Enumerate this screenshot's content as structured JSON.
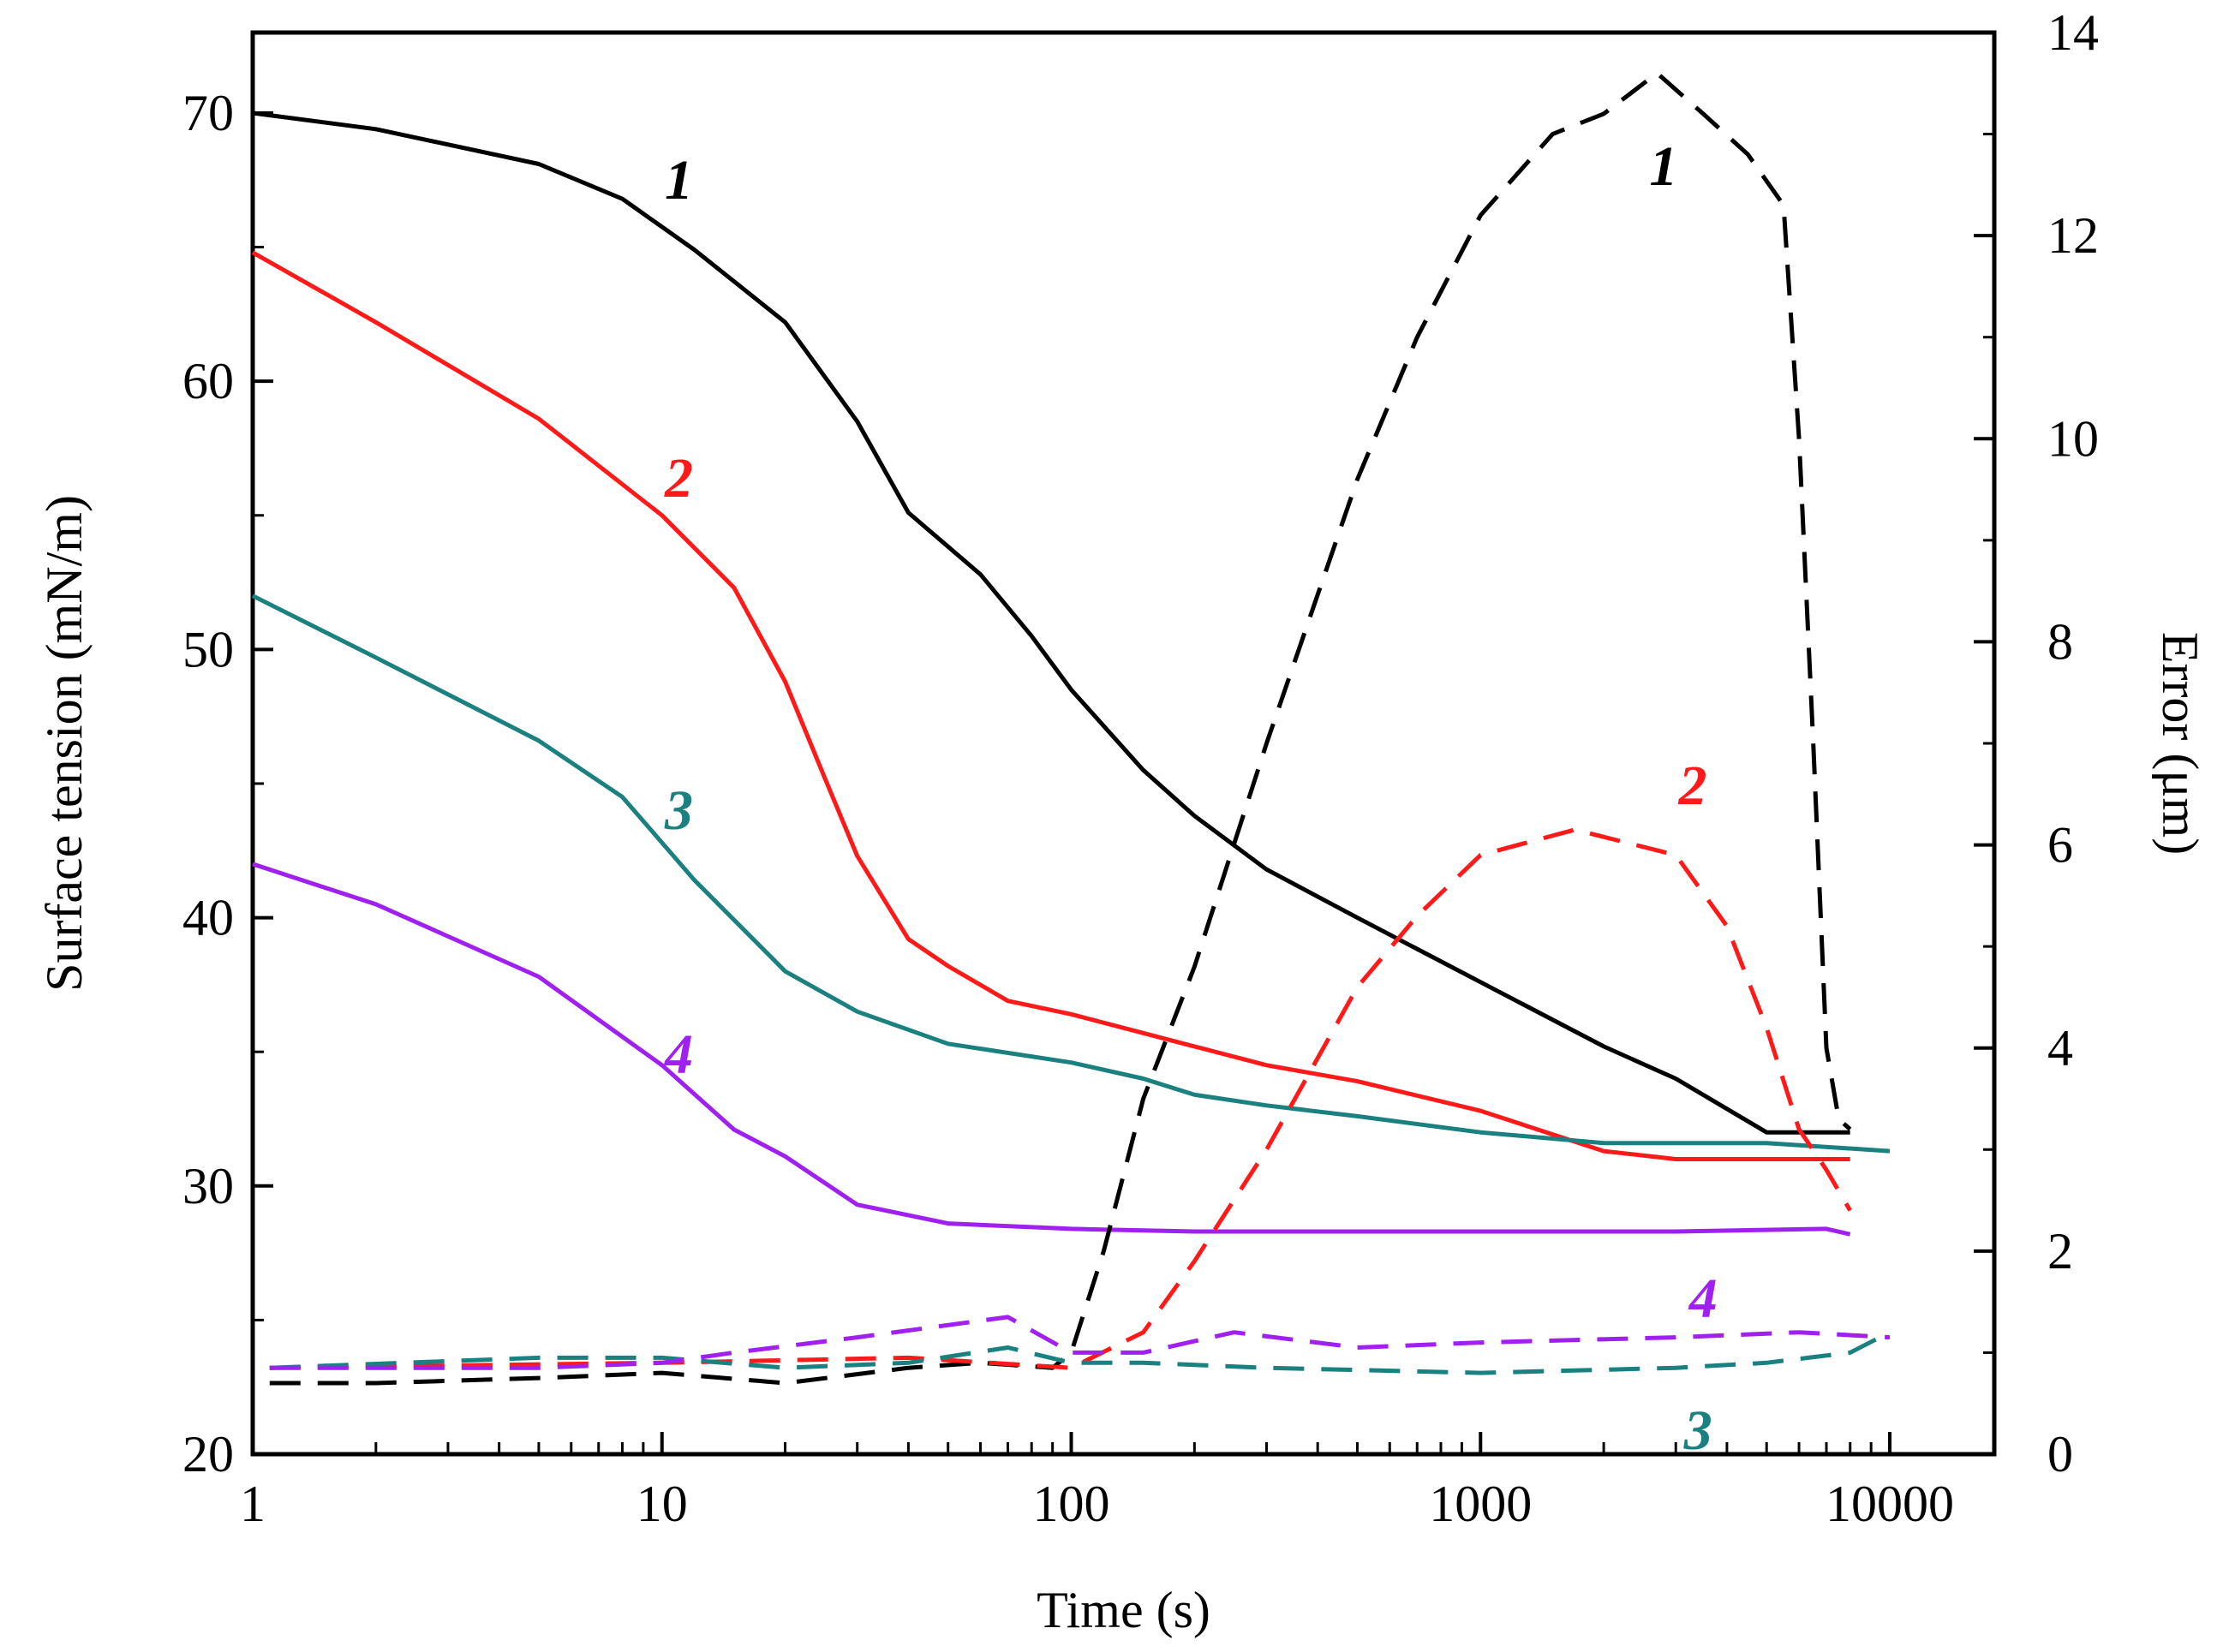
{
  "chart_data": {
    "type": "line",
    "title": "",
    "xlabel": "Time (s)",
    "ylabel_left": "Surface tension (mN/m)",
    "ylabel_right": "Error (μm)",
    "xscale": "log",
    "xlim": [
      1,
      18000
    ],
    "ylim_left": [
      20,
      73
    ],
    "ylim_right": [
      0,
      14
    ],
    "x_ticks": [
      1,
      10,
      100,
      1000,
      10000
    ],
    "x_tick_labels": [
      "1",
      "10",
      "100",
      "1000",
      "10000"
    ],
    "y_left_ticks": [
      20,
      30,
      40,
      50,
      60,
      70
    ],
    "y_left_tick_labels": [
      "20",
      "30",
      "40",
      "50",
      "60",
      "70"
    ],
    "y_right_ticks": [
      0,
      2,
      4,
      6,
      8,
      10,
      12,
      14
    ],
    "y_right_tick_labels": [
      "0",
      "2",
      "4",
      "6",
      "8",
      "10",
      "12",
      "14"
    ],
    "colors": {
      "s1": "#000000",
      "s2": "#ff1a1a",
      "s3": "#1a8080",
      "s4": "#a020f0"
    },
    "series": [
      {
        "name": "1",
        "axis": "left",
        "style": "solid",
        "color_key": "s1",
        "x": [
          1,
          2,
          5,
          8,
          12,
          20,
          30,
          40,
          60,
          80,
          100,
          150,
          200,
          300,
          500,
          1000,
          2000,
          3000,
          5000,
          8000
        ],
        "values": [
          70,
          69.4,
          68.1,
          66.8,
          64.9,
          62.2,
          58.5,
          55.1,
          52.8,
          50.5,
          48.5,
          45.5,
          43.8,
          41.8,
          40,
          37.6,
          35.2,
          34,
          32,
          32
        ]
      },
      {
        "name": "2",
        "axis": "left",
        "style": "solid",
        "color_key": "s2",
        "x": [
          1,
          2,
          5,
          10,
          15,
          20,
          25,
          30,
          40,
          50,
          70,
          100,
          150,
          200,
          300,
          500,
          1000,
          2000,
          3000,
          8000
        ],
        "values": [
          64.8,
          62.2,
          58.6,
          55,
          52.3,
          48.8,
          45.2,
          42.3,
          39.2,
          38.2,
          36.9,
          36.4,
          35.7,
          35.2,
          34.5,
          33.9,
          32.8,
          31.3,
          31,
          31
        ]
      },
      {
        "name": "3",
        "axis": "left",
        "style": "solid",
        "color_key": "s3",
        "x": [
          1,
          2,
          5,
          8,
          12,
          20,
          30,
          50,
          100,
          150,
          200,
          300,
          500,
          1000,
          2000,
          5000,
          10000
        ],
        "values": [
          52,
          49.7,
          46.6,
          44.5,
          41.4,
          38,
          36.5,
          35.3,
          34.6,
          34,
          33.4,
          33,
          32.6,
          32,
          31.6,
          31.6,
          31.3
        ]
      },
      {
        "name": "4",
        "axis": "left",
        "style": "solid",
        "color_key": "s4",
        "x": [
          1,
          2,
          5,
          10,
          15,
          20,
          30,
          50,
          100,
          200,
          500,
          1000,
          3000,
          7000,
          8000
        ],
        "values": [
          42,
          40.5,
          37.8,
          34.5,
          32.1,
          31.1,
          29.3,
          28.6,
          28.4,
          28.3,
          28.3,
          28.3,
          28.3,
          28.4,
          28.2
        ]
      },
      {
        "name": "1",
        "axis": "right",
        "style": "dashed",
        "color_key": "s1",
        "x": [
          1.1,
          2,
          5,
          10,
          20,
          40,
          60,
          90,
          100,
          120,
          150,
          200,
          300,
          500,
          700,
          1000,
          1500,
          2000,
          2700,
          3500,
          4500,
          5500,
          6000,
          6500,
          7000,
          7500,
          8000
        ],
        "values": [
          0.7,
          0.7,
          0.75,
          0.8,
          0.7,
          0.85,
          0.9,
          0.85,
          1.0,
          2.0,
          3.5,
          4.8,
          7.0,
          9.6,
          11.0,
          12.2,
          13.0,
          13.2,
          13.6,
          13.2,
          12.8,
          12.3,
          10.0,
          7.0,
          4.0,
          3.3,
          3.2
        ]
      },
      {
        "name": "2",
        "axis": "right",
        "style": "dashed",
        "color_key": "s2",
        "x": [
          1.1,
          10,
          40,
          100,
          150,
          200,
          300,
          500,
          700,
          1000,
          1700,
          3000,
          4000,
          5000,
          6000,
          7000,
          8000
        ],
        "values": [
          0.85,
          0.9,
          0.95,
          0.85,
          1.2,
          1.9,
          3.0,
          4.6,
          5.3,
          5.9,
          6.15,
          5.9,
          5.2,
          4.2,
          3.2,
          2.8,
          2.4
        ]
      },
      {
        "name": "3",
        "axis": "right",
        "style": "dashed",
        "color_key": "s3",
        "x": [
          1.1,
          5,
          10,
          20,
          40,
          70,
          100,
          150,
          300,
          1000,
          3000,
          5000,
          8000,
          10000
        ],
        "values": [
          0.85,
          0.95,
          0.95,
          0.85,
          0.9,
          1.05,
          0.9,
          0.9,
          0.85,
          0.8,
          0.85,
          0.9,
          1.0,
          1.2
        ]
      },
      {
        "name": "4",
        "axis": "right",
        "style": "dashed",
        "color_key": "s4",
        "x": [
          1.1,
          5,
          10,
          15,
          30,
          70,
          100,
          150,
          250,
          500,
          1000,
          3000,
          6000,
          10000
        ],
        "values": [
          0.85,
          0.85,
          0.9,
          1.0,
          1.15,
          1.35,
          1.0,
          1.0,
          1.2,
          1.05,
          1.1,
          1.15,
          1.2,
          1.15
        ]
      }
    ],
    "curve_labels": [
      {
        "text": "1",
        "x": 11,
        "y": 66.8,
        "axis": "left",
        "color_key": "s1"
      },
      {
        "text": "2",
        "x": 11,
        "y": 55.7,
        "axis": "left",
        "color_key": "s2"
      },
      {
        "text": "3",
        "x": 11,
        "y": 43.3,
        "axis": "left",
        "color_key": "s3"
      },
      {
        "text": "4",
        "x": 11,
        "y": 34.2,
        "axis": "left",
        "color_key": "s4"
      },
      {
        "text": "1",
        "x": 2800,
        "y": 12.5,
        "axis": "right",
        "color_key": "s1"
      },
      {
        "text": "2",
        "x": 3300,
        "y": 6.4,
        "axis": "right",
        "color_key": "s2"
      },
      {
        "text": "3",
        "x": 3400,
        "y": 0.05,
        "axis": "right",
        "color_key": "s3"
      },
      {
        "text": "4",
        "x": 3500,
        "y": 1.35,
        "axis": "right",
        "color_key": "s4"
      }
    ]
  }
}
